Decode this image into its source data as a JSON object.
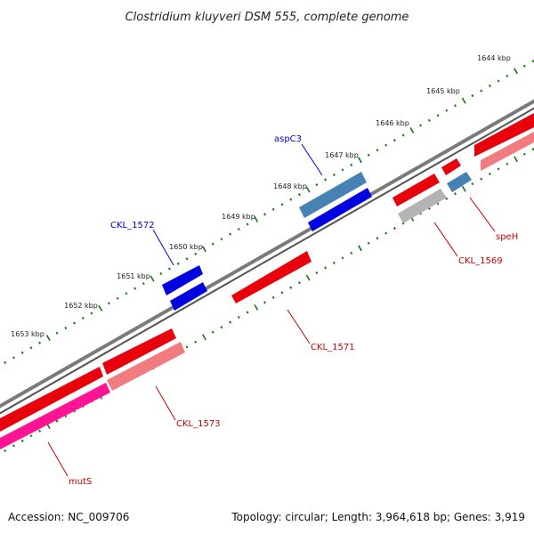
{
  "title": "Clostridium kluyveri DSM 555, complete genome",
  "footer": {
    "accession": "Accession: NC_009706",
    "topology": "Topology: circular; Length: 3,964,618 bp; Genes: 3,919"
  },
  "scale": {
    "ticks": [
      "1644 kbp",
      "1645 kbp",
      "1646 kbp",
      "1647 kbp",
      "1648 kbp",
      "1649 kbp",
      "1650 kbp",
      "1651 kbp",
      "1652 kbp",
      "1653 kbp"
    ]
  },
  "colors": {
    "backbone": "#7a7a7a",
    "gene_red": "#e8000a",
    "gene_pink": "#f07c80",
    "gene_magenta": "#ff1493",
    "gene_steel": "#4682b4",
    "gene_blue": "#0000e0",
    "gene_gray": "#b4b4b4",
    "tick_green": "#0e7a0e",
    "label_red": "#cc0000",
    "label_blue": "#0000cc"
  },
  "labels": {
    "aspC3": "aspC3",
    "CKL_1572": "CKL_1572",
    "speH": "speH",
    "CKL_1569": "CKL_1569",
    "CKL_1571": "CKL_1571",
    "CKL_1573": "CKL_1573",
    "mutS": "mutS"
  }
}
